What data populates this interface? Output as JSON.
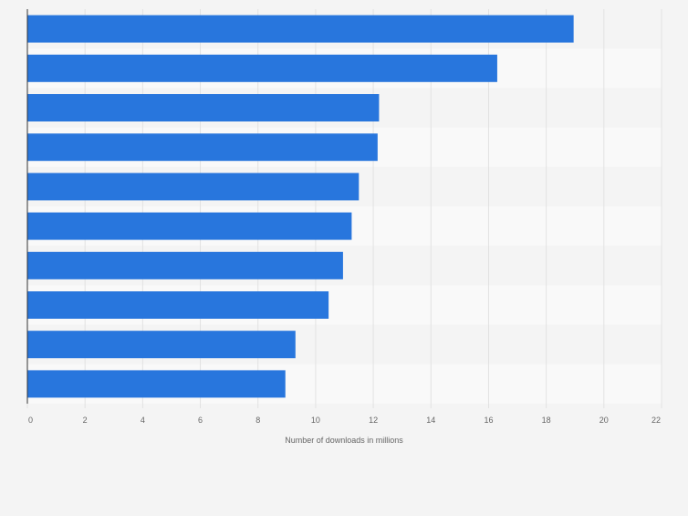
{
  "chart_data": {
    "type": "bar",
    "orientation": "horizontal",
    "title": "",
    "ylabel": "",
    "xlabel": "Number of downloads in millions",
    "categories": [
      "",
      "",
      "",
      "",
      "",
      "",
      "",
      "",
      "",
      ""
    ],
    "values": [
      18.95,
      16.3,
      12.2,
      12.15,
      11.5,
      11.25,
      10.95,
      10.45,
      9.3,
      8.95
    ],
    "xlim": [
      0,
      22
    ],
    "ticks": [
      "0",
      "2",
      "4",
      "6",
      "8",
      "10",
      "12",
      "14",
      "16",
      "18",
      "20",
      "22"
    ],
    "grid": true,
    "legend": "none",
    "colors": {
      "bar": "#2876dd",
      "band_light": "#f9f9f9",
      "band_dark": "#f4f4f4",
      "grid": "#e2e2e2",
      "axis": "#333333",
      "tick_text": "#666666"
    }
  }
}
